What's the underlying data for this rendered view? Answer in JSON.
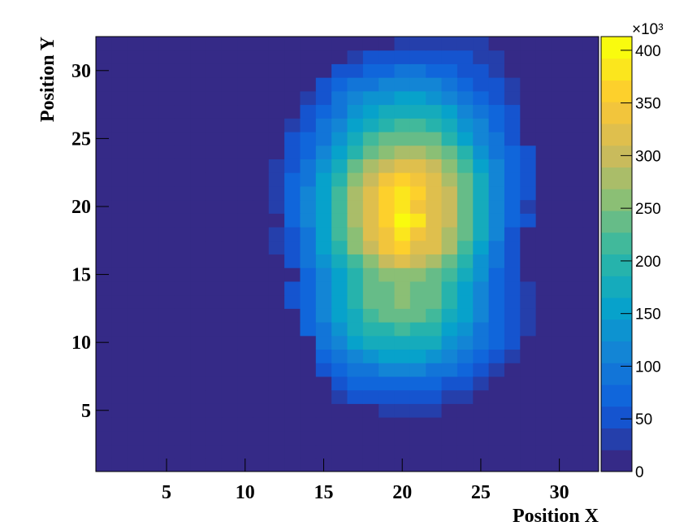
{
  "chart_data": {
    "type": "heatmap",
    "x_label": "Position X",
    "y_label": "Position Y",
    "x": [
      1,
      2,
      3,
      4,
      5,
      6,
      7,
      8,
      9,
      10,
      11,
      12,
      13,
      14,
      15,
      16,
      17,
      18,
      19,
      20,
      21,
      22,
      23,
      24,
      25,
      26,
      27,
      28,
      29,
      30,
      31,
      32
    ],
    "y": [
      1,
      2,
      3,
      4,
      5,
      6,
      7,
      8,
      9,
      10,
      11,
      12,
      13,
      14,
      15,
      16,
      17,
      18,
      19,
      20,
      21,
      22,
      23,
      24,
      25,
      26,
      27,
      28,
      29,
      30,
      31,
      32
    ],
    "xlim": [
      0.5,
      32.5
    ],
    "ylim": [
      0.5,
      32.5
    ],
    "xticks": [
      5,
      10,
      15,
      20,
      25,
      30
    ],
    "yticks": [
      5,
      10,
      15,
      20,
      25,
      30
    ],
    "zlim": [
      0,
      413
    ],
    "zticks": [
      0,
      50,
      100,
      150,
      200,
      250,
      300,
      350,
      400
    ],
    "z_multiplier": "×10³",
    "z": [
      [
        0,
        0,
        0,
        0,
        0,
        0,
        0,
        0,
        0,
        0,
        0,
        0,
        0,
        0,
        0,
        0,
        0,
        0,
        0,
        0,
        0,
        0,
        0,
        0,
        0,
        0,
        0,
        0,
        0,
        0,
        0,
        0
      ],
      [
        0,
        0,
        0,
        0,
        0,
        0,
        0,
        0,
        0,
        0,
        0,
        0,
        0,
        0,
        0,
        0,
        0,
        0,
        0,
        0,
        0,
        0,
        0,
        0,
        0,
        0,
        0,
        0,
        0,
        0,
        0,
        0
      ],
      [
        0,
        0,
        0,
        0,
        0,
        0,
        0,
        0,
        0,
        0,
        0,
        0,
        0,
        0,
        0,
        0,
        0,
        0,
        0,
        0,
        0,
        0,
        0,
        0,
        0,
        0,
        0,
        0,
        0,
        0,
        0,
        0
      ],
      [
        0,
        0,
        0,
        0,
        0,
        0,
        0,
        0,
        0,
        0,
        0,
        0,
        0,
        0,
        0,
        0,
        0,
        0,
        0,
        0,
        0,
        0,
        0,
        0,
        0,
        0,
        0,
        0,
        0,
        0,
        0,
        0
      ],
      [
        0,
        0,
        0,
        0,
        0,
        0,
        0,
        0,
        0,
        0,
        0,
        0,
        0,
        0,
        0,
        0,
        0,
        0,
        30,
        30,
        30,
        30,
        0,
        0,
        0,
        0,
        0,
        0,
        0,
        0,
        0,
        0
      ],
      [
        0,
        0,
        0,
        0,
        0,
        0,
        0,
        0,
        0,
        0,
        0,
        0,
        0,
        0,
        0,
        40,
        50,
        50,
        50,
        60,
        50,
        50,
        40,
        40,
        0,
        0,
        0,
        0,
        0,
        0,
        0,
        0
      ],
      [
        0,
        0,
        0,
        0,
        0,
        0,
        0,
        0,
        0,
        0,
        0,
        0,
        0,
        0,
        0,
        60,
        70,
        70,
        80,
        80,
        80,
        70,
        60,
        50,
        40,
        0,
        0,
        0,
        0,
        0,
        0,
        0
      ],
      [
        0,
        0,
        0,
        0,
        0,
        0,
        0,
        0,
        0,
        0,
        0,
        0,
        0,
        0,
        60,
        80,
        90,
        100,
        110,
        110,
        110,
        100,
        90,
        80,
        60,
        40,
        0,
        0,
        0,
        0,
        0,
        0
      ],
      [
        0,
        0,
        0,
        0,
        0,
        0,
        0,
        0,
        0,
        0,
        0,
        0,
        0,
        0,
        80,
        100,
        120,
        140,
        150,
        150,
        150,
        140,
        120,
        100,
        80,
        60,
        40,
        0,
        0,
        0,
        0,
        0
      ],
      [
        0,
        0,
        0,
        0,
        0,
        0,
        0,
        0,
        0,
        0,
        0,
        0,
        0,
        0,
        90,
        120,
        150,
        170,
        180,
        180,
        180,
        170,
        140,
        120,
        90,
        70,
        50,
        0,
        0,
        0,
        0,
        0
      ],
      [
        0,
        0,
        0,
        0,
        0,
        0,
        0,
        0,
        0,
        0,
        0,
        0,
        0,
        70,
        100,
        140,
        170,
        190,
        200,
        210,
        200,
        190,
        160,
        140,
        100,
        70,
        50,
        40,
        0,
        0,
        0,
        0
      ],
      [
        0,
        0,
        0,
        0,
        0,
        0,
        0,
        0,
        0,
        0,
        0,
        0,
        0,
        70,
        110,
        150,
        180,
        210,
        230,
        230,
        230,
        210,
        180,
        150,
        110,
        80,
        50,
        40,
        0,
        0,
        0,
        0
      ],
      [
        0,
        0,
        0,
        0,
        0,
        0,
        0,
        0,
        0,
        0,
        0,
        0,
        50,
        80,
        120,
        160,
        200,
        230,
        240,
        250,
        240,
        230,
        200,
        160,
        120,
        80,
        50,
        40,
        0,
        0,
        0,
        0
      ],
      [
        0,
        0,
        0,
        0,
        0,
        0,
        0,
        0,
        0,
        0,
        0,
        0,
        50,
        80,
        120,
        160,
        200,
        230,
        240,
        250,
        240,
        230,
        200,
        160,
        120,
        80,
        50,
        40,
        0,
        0,
        0,
        0
      ],
      [
        0,
        0,
        0,
        0,
        0,
        0,
        0,
        0,
        0,
        0,
        0,
        0,
        0,
        80,
        120,
        160,
        200,
        230,
        250,
        260,
        250,
        240,
        210,
        170,
        130,
        80,
        50,
        0,
        0,
        0,
        0,
        0
      ],
      [
        0,
        0,
        0,
        0,
        0,
        0,
        0,
        0,
        0,
        0,
        0,
        0,
        60,
        90,
        140,
        180,
        220,
        260,
        290,
        310,
        290,
        270,
        240,
        190,
        140,
        90,
        50,
        0,
        0,
        0,
        0,
        0
      ],
      [
        0,
        0,
        0,
        0,
        0,
        0,
        0,
        0,
        0,
        0,
        0,
        40,
        60,
        100,
        150,
        200,
        250,
        290,
        340,
        360,
        330,
        310,
        270,
        220,
        160,
        100,
        60,
        0,
        0,
        0,
        0,
        0
      ],
      [
        0,
        0,
        0,
        0,
        0,
        0,
        0,
        0,
        0,
        0,
        0,
        40,
        60,
        100,
        150,
        210,
        260,
        310,
        350,
        380,
        350,
        320,
        280,
        230,
        170,
        110,
        60,
        0,
        0,
        0,
        0,
        0
      ],
      [
        0,
        0,
        0,
        0,
        0,
        0,
        0,
        0,
        0,
        0,
        0,
        0,
        70,
        110,
        160,
        220,
        270,
        330,
        360,
        410,
        380,
        330,
        290,
        240,
        180,
        120,
        70,
        50,
        0,
        0,
        0,
        0
      ],
      [
        0,
        0,
        0,
        0,
        0,
        0,
        0,
        0,
        0,
        0,
        0,
        40,
        70,
        110,
        160,
        220,
        270,
        320,
        360,
        380,
        350,
        330,
        290,
        240,
        180,
        120,
        70,
        40,
        0,
        0,
        0,
        0
      ],
      [
        0,
        0,
        0,
        0,
        0,
        0,
        0,
        0,
        0,
        0,
        0,
        40,
        70,
        110,
        160,
        210,
        270,
        320,
        370,
        390,
        360,
        330,
        290,
        240,
        180,
        120,
        80,
        50,
        0,
        0,
        0,
        0
      ],
      [
        0,
        0,
        0,
        0,
        0,
        0,
        0,
        0,
        0,
        0,
        0,
        40,
        70,
        100,
        150,
        200,
        250,
        300,
        340,
        360,
        340,
        320,
        280,
        230,
        170,
        120,
        80,
        50,
        0,
        0,
        0,
        0
      ],
      [
        0,
        0,
        0,
        0,
        0,
        0,
        0,
        0,
        0,
        0,
        0,
        40,
        60,
        90,
        140,
        180,
        230,
        270,
        300,
        310,
        310,
        290,
        260,
        210,
        160,
        110,
        70,
        50,
        0,
        0,
        0,
        0
      ],
      [
        0,
        0,
        0,
        0,
        0,
        0,
        0,
        0,
        0,
        0,
        0,
        0,
        50,
        80,
        120,
        160,
        200,
        240,
        260,
        270,
        270,
        260,
        230,
        190,
        140,
        100,
        70,
        50,
        0,
        0,
        0,
        0
      ],
      [
        0,
        0,
        0,
        0,
        0,
        0,
        0,
        0,
        0,
        0,
        0,
        0,
        50,
        70,
        100,
        140,
        170,
        210,
        230,
        240,
        240,
        230,
        200,
        160,
        120,
        90,
        60,
        0,
        0,
        0,
        0,
        0
      ],
      [
        0,
        0,
        0,
        0,
        0,
        0,
        0,
        0,
        0,
        0,
        0,
        0,
        40,
        60,
        90,
        120,
        150,
        180,
        200,
        210,
        210,
        200,
        170,
        140,
        110,
        80,
        50,
        0,
        0,
        0,
        0,
        0
      ],
      [
        0,
        0,
        0,
        0,
        0,
        0,
        0,
        0,
        0,
        0,
        0,
        0,
        0,
        50,
        80,
        100,
        130,
        160,
        170,
        180,
        180,
        170,
        150,
        120,
        90,
        70,
        50,
        0,
        0,
        0,
        0,
        0
      ],
      [
        0,
        0,
        0,
        0,
        0,
        0,
        0,
        0,
        0,
        0,
        0,
        0,
        0,
        40,
        60,
        90,
        110,
        130,
        140,
        150,
        150,
        140,
        120,
        100,
        80,
        60,
        40,
        0,
        0,
        0,
        0,
        0
      ],
      [
        0,
        0,
        0,
        0,
        0,
        0,
        0,
        0,
        0,
        0,
        0,
        0,
        0,
        0,
        50,
        70,
        90,
        100,
        110,
        120,
        110,
        110,
        90,
        80,
        60,
        50,
        40,
        0,
        0,
        0,
        0,
        0
      ],
      [
        0,
        0,
        0,
        0,
        0,
        0,
        0,
        0,
        0,
        0,
        0,
        0,
        0,
        0,
        0,
        50,
        60,
        70,
        80,
        90,
        90,
        80,
        70,
        60,
        50,
        40,
        0,
        0,
        0,
        0,
        0,
        0
      ],
      [
        0,
        0,
        0,
        0,
        0,
        0,
        0,
        0,
        0,
        0,
        0,
        0,
        0,
        0,
        0,
        0,
        40,
        50,
        50,
        60,
        60,
        60,
        50,
        50,
        40,
        40,
        0,
        0,
        0,
        0,
        0,
        0
      ],
      [
        0,
        0,
        0,
        0,
        0,
        0,
        0,
        0,
        0,
        0,
        0,
        0,
        0,
        0,
        0,
        0,
        0,
        0,
        0,
        30,
        40,
        40,
        40,
        30,
        30,
        0,
        0,
        0,
        0,
        0,
        0,
        0
      ]
    ]
  }
}
